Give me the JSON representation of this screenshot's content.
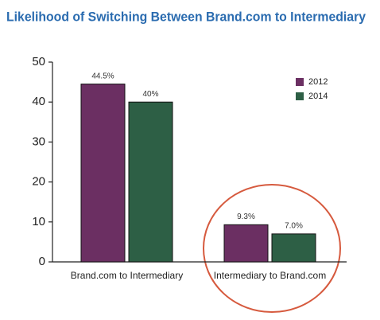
{
  "chart_data": {
    "type": "bar",
    "title": "Likelihood of Switching Between Brand.com to Intermediary",
    "categories": [
      "Brand.com to Intermediary",
      "Intermediary to Brand.com"
    ],
    "series": [
      {
        "name": "2012",
        "color": "#6b2f62",
        "values": [
          44.5,
          9.3
        ],
        "value_labels": [
          "44.5%",
          "9.3%"
        ]
      },
      {
        "name": "2014",
        "color": "#2d5f45",
        "values": [
          40,
          7.0
        ],
        "value_labels": [
          "40%",
          "7.0%"
        ]
      }
    ],
    "ylim": [
      0,
      50
    ],
    "yticks": [
      0,
      10,
      20,
      30,
      40,
      50
    ],
    "legend": "upper right"
  }
}
